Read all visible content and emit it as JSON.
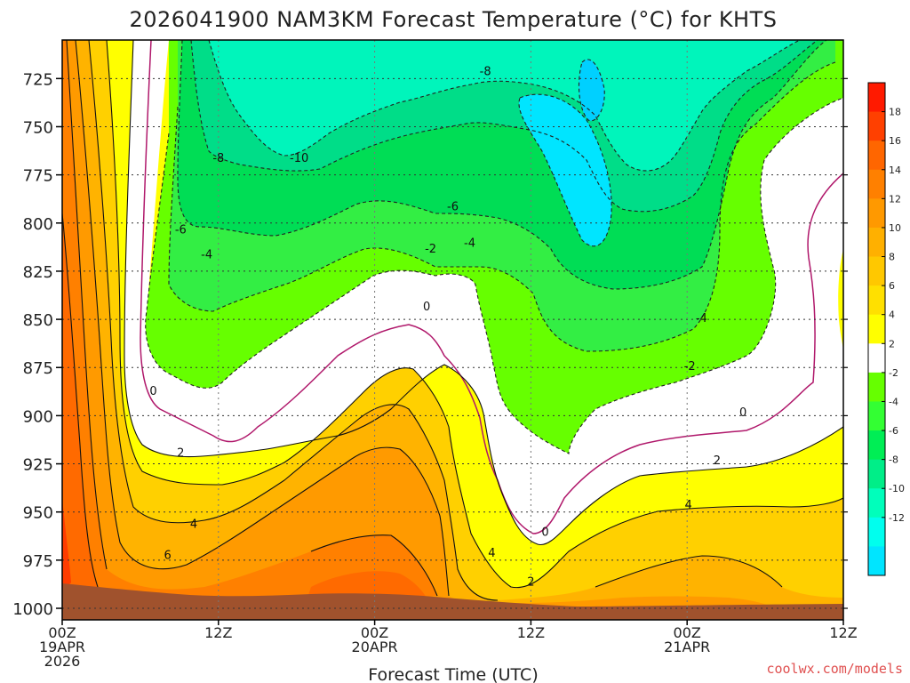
{
  "chart_data": {
    "type": "heatmap",
    "title": "2026041900 NAM3KM Forecast Temperature (°C) for KHTS",
    "xlabel": "Forecast Time (UTC)",
    "ylabel": "",
    "x_ticks": [
      {
        "hours": 0,
        "lines": [
          "00Z",
          "19APR",
          "2026"
        ]
      },
      {
        "hours": 12,
        "lines": [
          "12Z"
        ]
      },
      {
        "hours": 24,
        "lines": [
          "00Z",
          "20APR"
        ]
      },
      {
        "hours": 36,
        "lines": [
          "12Z"
        ]
      },
      {
        "hours": 48,
        "lines": [
          "00Z",
          "21APR"
        ]
      },
      {
        "hours": 60,
        "lines": [
          "12Z"
        ]
      }
    ],
    "xlim": [
      0,
      60
    ],
    "y_ticks": [
      725,
      750,
      775,
      800,
      825,
      850,
      875,
      900,
      925,
      950,
      975,
      1000
    ],
    "ylim": [
      705,
      1006
    ],
    "grid": true,
    "colorbar": {
      "ticks": [
        "18",
        "16",
        "14",
        "12",
        "10",
        "8",
        "6",
        "4",
        "2",
        "-2",
        "-4",
        "-6",
        "-8",
        "-10",
        "-12"
      ],
      "colors": [
        "#ff1a00",
        "#ff4000",
        "#ff6600",
        "#ff8000",
        "#ff9900",
        "#ffb000",
        "#ffc800",
        "#ffe000",
        "#ffff00",
        "#ffffff",
        "#66ff00",
        "#33ff33",
        "#00ee55",
        "#00ee88",
        "#00ffbb",
        "#00ffee",
        "#00e5ff"
      ]
    },
    "contour_labels": [
      {
        "text": "-10",
        "hours": 18.2,
        "p": 766
      },
      {
        "text": "-8",
        "hours": 12.0,
        "p": 766
      },
      {
        "text": "-8",
        "hours": 32.5,
        "p": 721
      },
      {
        "text": "-6",
        "hours": 9.1,
        "p": 803
      },
      {
        "text": "-6",
        "hours": 30.0,
        "p": 791
      },
      {
        "text": "-4",
        "hours": 11.1,
        "p": 816
      },
      {
        "text": "-4",
        "hours": 31.3,
        "p": 810
      },
      {
        "text": "-4",
        "hours": 49.1,
        "p": 849
      },
      {
        "text": "-2",
        "hours": 28.3,
        "p": 813
      },
      {
        "text": "-2",
        "hours": 48.2,
        "p": 874
      },
      {
        "text": "0",
        "hours": 7.0,
        "p": 887
      },
      {
        "text": "0",
        "hours": 28.0,
        "p": 843
      },
      {
        "text": "0",
        "hours": 37.1,
        "p": 960
      },
      {
        "text": "0",
        "hours": 52.3,
        "p": 898
      },
      {
        "text": "2",
        "hours": 9.1,
        "p": 919
      },
      {
        "text": "2",
        "hours": 36.0,
        "p": 986
      },
      {
        "text": "2",
        "hours": 50.3,
        "p": 923
      },
      {
        "text": "4",
        "hours": 10.1,
        "p": 956
      },
      {
        "text": "4",
        "hours": 33.0,
        "p": 971
      },
      {
        "text": "4",
        "hours": 48.1,
        "p": 946
      },
      {
        "text": "6",
        "hours": 8.1,
        "p": 972
      }
    ]
  },
  "credit": "coolwx.com/models"
}
